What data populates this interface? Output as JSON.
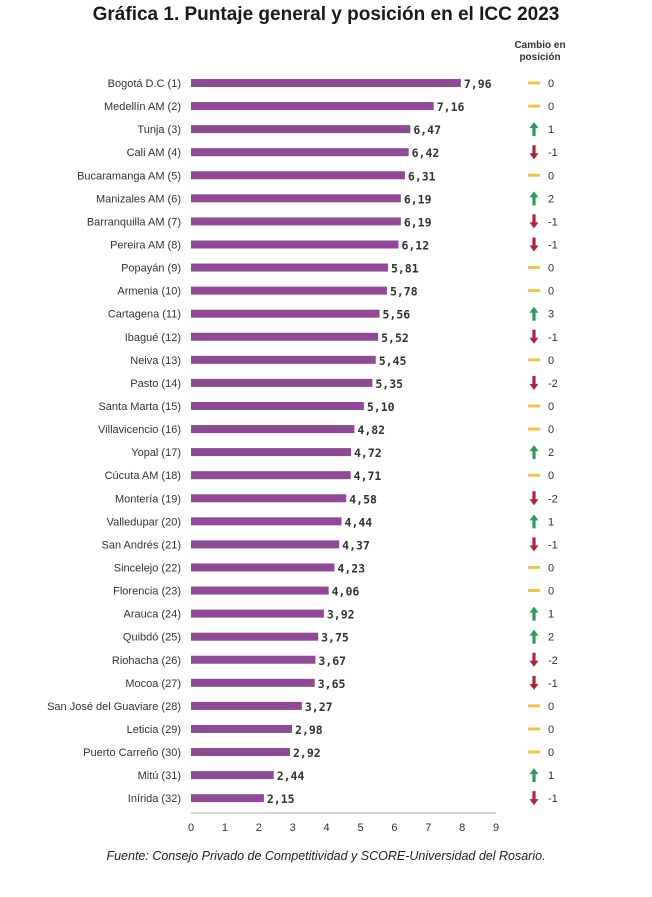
{
  "title": "Gráfica 1. Puntaje general y posición en el ICC 2023",
  "change_header": [
    "Cambio en",
    "posición"
  ],
  "source": "Fuente: Consejo Privado de Competitividad y SCORE-Universidad del Rosario.",
  "colors": {
    "bar": "#8e4a94",
    "up": "#2e9a5a",
    "down": "#b0243a",
    "same": "#f2c53d",
    "axis": "#aaaaaa",
    "text": "#333333"
  },
  "chart_data": {
    "type": "bar",
    "orientation": "horizontal",
    "xlim": [
      0,
      9
    ],
    "xticks": [
      "0",
      "1",
      "2",
      "3",
      "4",
      "5",
      "6",
      "7",
      "8",
      "9"
    ],
    "categories": [
      "Bogotá D.C (1)",
      "Medellín AM (2)",
      "Tunja (3)",
      "Cali AM (4)",
      "Bucaramanga AM (5)",
      "Manizales AM (6)",
      "Barranquilla AM (7)",
      "Pereira AM (8)",
      "Popayán (9)",
      "Armenia (10)",
      "Cartagena (11)",
      "Ibagué (12)",
      "Neiva (13)",
      "Pasto (14)",
      "Santa Marta (15)",
      "Villavicencio (16)",
      "Yopal (17)",
      "Cúcuta AM (18)",
      "Montería (19)",
      "Valledupar (20)",
      "San Andrés (21)",
      "Sincelejo (22)",
      "Florencia (23)",
      "Arauca (24)",
      "Quibdó (25)",
      "Riohacha (26)",
      "Mocoa (27)",
      "San José del Guaviare (28)",
      "Leticia (29)",
      "Puerto Carreño (30)",
      "Mitú (31)",
      "Inírida (32)"
    ],
    "values": [
      7.96,
      7.16,
      6.47,
      6.42,
      6.31,
      6.19,
      6.19,
      6.12,
      5.81,
      5.78,
      5.56,
      5.52,
      5.45,
      5.35,
      5.1,
      4.82,
      4.72,
      4.71,
      4.58,
      4.44,
      4.37,
      4.23,
      4.06,
      3.92,
      3.75,
      3.67,
      3.65,
      3.27,
      2.98,
      2.92,
      2.44,
      2.15
    ],
    "value_labels": [
      "7,96",
      "7,16",
      "6,47",
      "6,42",
      "6,31",
      "6,19",
      "6,19",
      "6,12",
      "5,81",
      "5,78",
      "5,56",
      "5,52",
      "5,45",
      "5,35",
      "5,10",
      "4,82",
      "4,72",
      "4,71",
      "4,58",
      "4,44",
      "4,37",
      "4,23",
      "4,06",
      "3,92",
      "3,75",
      "3,67",
      "3,65",
      "3,27",
      "2,98",
      "2,92",
      "2,44",
      "2,15"
    ],
    "position_change": [
      "0",
      "0",
      "1",
      "-1",
      "0",
      "2",
      "-1",
      "-1",
      "0",
      "0",
      "3",
      "-1",
      "0",
      "-2",
      "0",
      "0",
      "2",
      "0",
      "-2",
      "1",
      "-1",
      "0",
      "0",
      "1",
      "2",
      "-2",
      "-1",
      "0",
      "0",
      "0",
      "1",
      "-1"
    ]
  }
}
